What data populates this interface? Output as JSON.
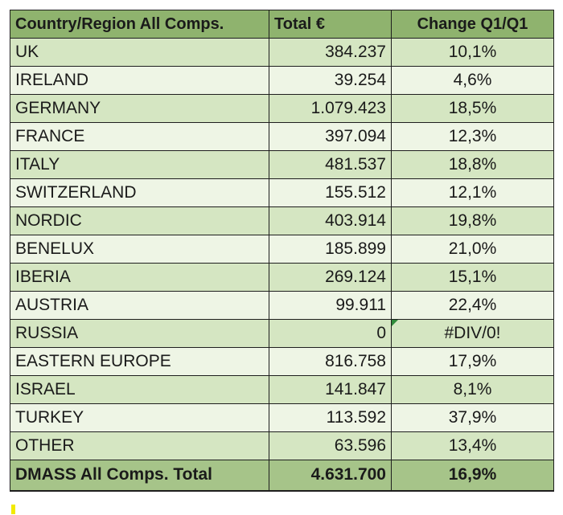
{
  "table": {
    "headers": {
      "country": "Country/Region All Comps.",
      "total": "Total €",
      "change": "Change Q1/Q1"
    },
    "rows": [
      {
        "country": "UK",
        "total": "384.237",
        "change": "10,1%"
      },
      {
        "country": "IRELAND",
        "total": "39.254",
        "change": "4,6%"
      },
      {
        "country": "GERMANY",
        "total": "1.079.423",
        "change": "18,5%"
      },
      {
        "country": "FRANCE",
        "total": "397.094",
        "change": "12,3%"
      },
      {
        "country": "ITALY",
        "total": "481.537",
        "change": "18,8%"
      },
      {
        "country": "SWITZERLAND",
        "total": "155.512",
        "change": "12,1%"
      },
      {
        "country": "NORDIC",
        "total": "403.914",
        "change": "19,8%"
      },
      {
        "country": "BENELUX",
        "total": "185.899",
        "change": "21,0%"
      },
      {
        "country": "IBERIA",
        "total": "269.124",
        "change": "15,1%"
      },
      {
        "country": "AUSTRIA",
        "total": "99.911",
        "change": "22,4%"
      },
      {
        "country": "RUSSIA",
        "total": "0",
        "change": "#DIV/0!"
      },
      {
        "country": "EASTERN EUROPE",
        "total": "816.758",
        "change": "17,9%"
      },
      {
        "country": "ISRAEL",
        "total": "141.847",
        "change": "8,1%"
      },
      {
        "country": "TURKEY",
        "total": "113.592",
        "change": "37,9%"
      },
      {
        "country": "OTHER",
        "total": "63.596",
        "change": "13,4%"
      }
    ],
    "footer": {
      "country": "DMASS All Comps. Total",
      "total": "4.631.700",
      "change": "16,9%"
    }
  },
  "colors": {
    "header": "#8fb36e",
    "row_dark": "#d5e6c2",
    "row_light": "#eef5e5",
    "total_row": "#a6c489",
    "error_indicator": "#2f8a3a",
    "highlight_mark": "#f2ea00"
  }
}
